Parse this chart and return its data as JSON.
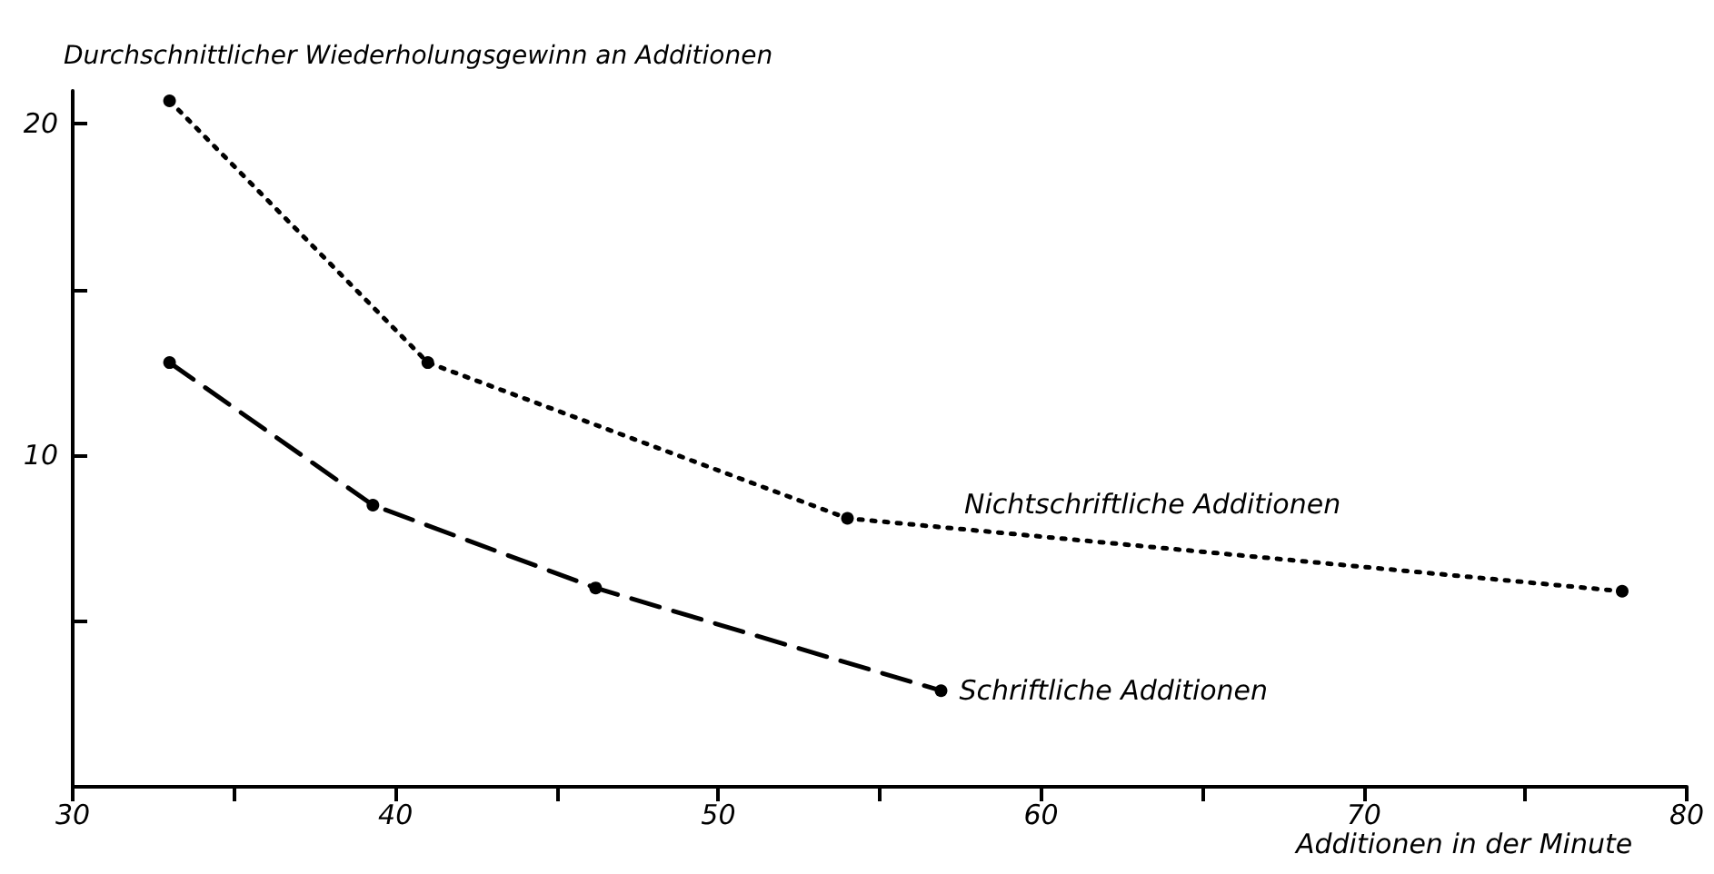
{
  "chart_data": {
    "type": "line",
    "xlabel": "Additionen in der Minute",
    "ylabel": "Durchschnittlicher Wiederholungsgewinn an Additionen",
    "series": [
      {
        "name": "Nichtschriftliche Additionen",
        "color": "#000000",
        "line_style": "dotted",
        "x": [
          33,
          41,
          54,
          78
        ],
        "values": [
          20.7,
          12.8,
          8.1,
          5.9
        ]
      },
      {
        "name": "Schriftliche Additionen",
        "color": "#000000",
        "line_style": "dashed",
        "x": [
          33,
          39.3,
          46.2,
          56.9
        ],
        "values": [
          12.8,
          8.5,
          6.0,
          2.9
        ]
      }
    ],
    "xlim": [
      30,
      80
    ],
    "xticks": [
      30,
      {
        "value": 35,
        "label": null
      },
      40,
      {
        "value": 45,
        "label": null
      },
      50,
      {
        "value": 55,
        "label": null
      },
      60,
      {
        "value": 65,
        "label": null
      },
      70,
      {
        "value": 75,
        "label": null
      },
      80
    ],
    "ylim": [
      0,
      21
    ],
    "yticks": [
      {
        "value": 5,
        "label": null
      },
      10,
      {
        "value": 15,
        "label": null
      },
      20
    ],
    "marker": "circle",
    "grid": false,
    "legend": false
  }
}
